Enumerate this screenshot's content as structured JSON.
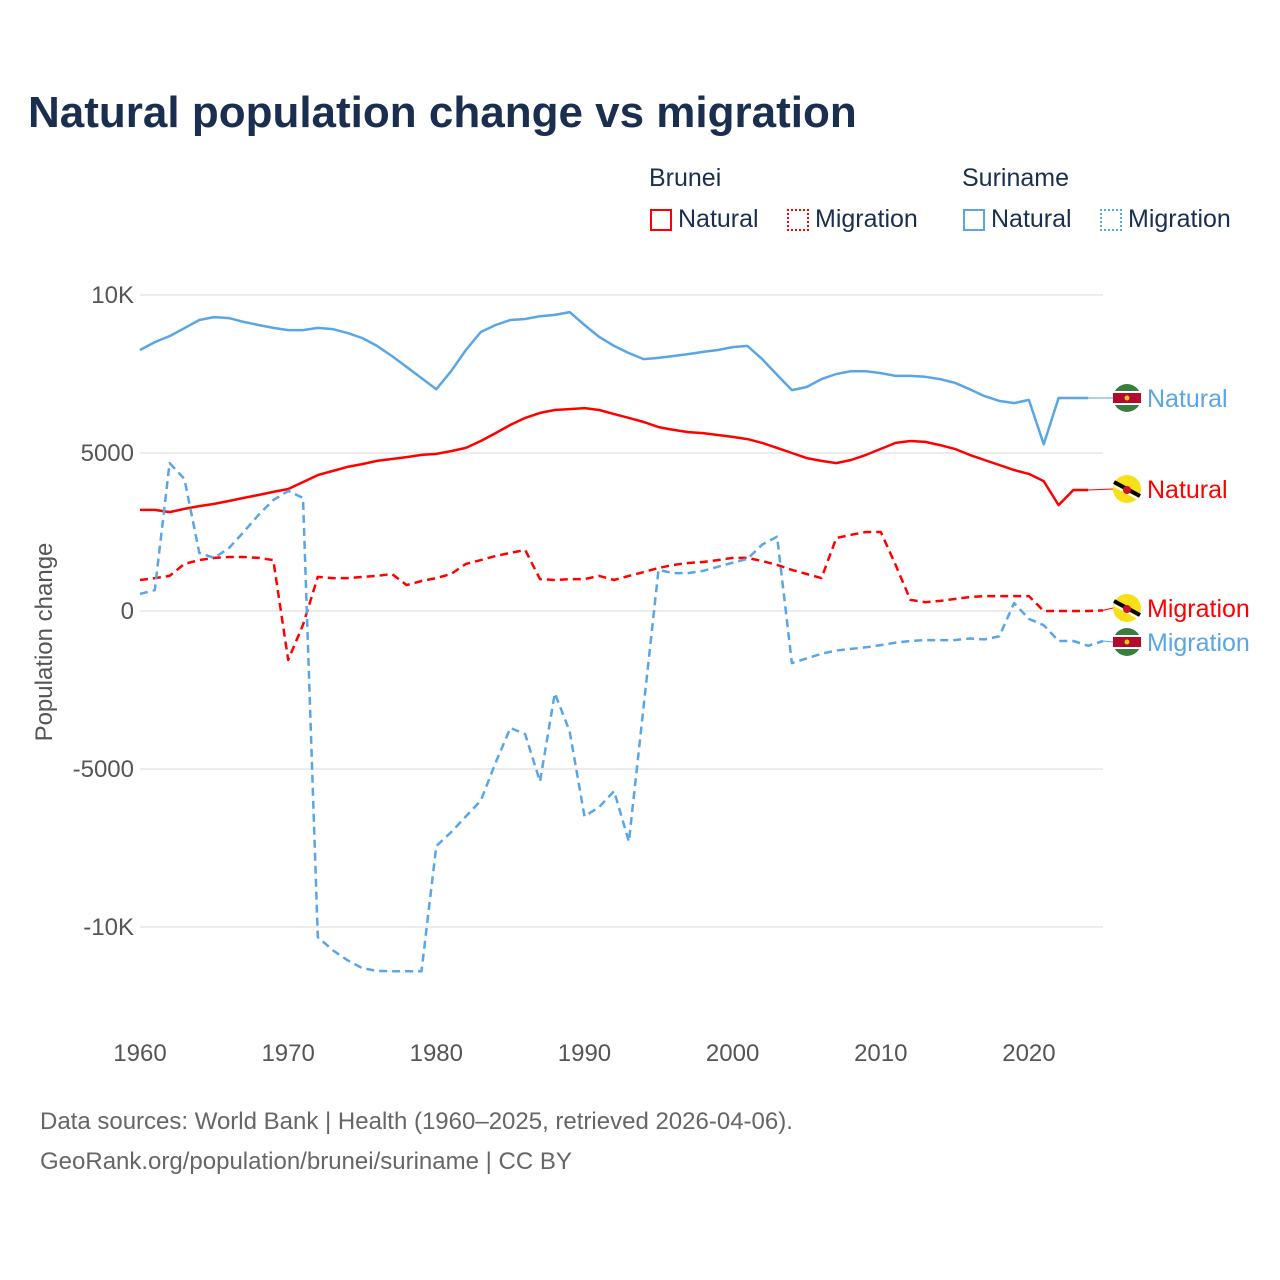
{
  "title": "Natural population change vs migration",
  "legend": {
    "groups": [
      {
        "name": "Brunei",
        "items": [
          "Natural",
          "Migration"
        ],
        "color": "#ff0000"
      },
      {
        "name": "Suriname",
        "items": [
          "Natural",
          "Migration"
        ],
        "color": "#5aa5e6"
      }
    ]
  },
  "footer": {
    "line1": "Data sources: World Bank | Health (1960–2025, retrieved 2026-04-06).",
    "line2": "GeoRank.org/population/brunei/suriname | CC BY"
  },
  "chart_data": {
    "type": "line",
    "title": "Natural population change vs migration",
    "xlabel": "",
    "ylabel": "Population change",
    "xlim": [
      1960,
      2025
    ],
    "ylim": [
      -12000,
      10000
    ],
    "x_ticks": [
      1960,
      1970,
      1980,
      1990,
      2000,
      2010,
      2020
    ],
    "x_tick_labels": [
      "1960",
      "1970",
      "1980",
      "1990",
      "2000",
      "2010",
      "2020"
    ],
    "y_ticks": [
      10000,
      5000,
      0,
      -5000,
      -10000
    ],
    "y_tick_labels": [
      "10K",
      "5000",
      "0",
      "-5000",
      "-10K"
    ],
    "grid": true,
    "legend_position": "top-right",
    "series": [
      {
        "name": "Suriname Natural",
        "label": "Natural",
        "country": "Suriname",
        "color": "#5aa5e6",
        "dash": false,
        "start": 1960,
        "values": [
          8260,
          8510,
          8700,
          8950,
          9210,
          9300,
          9270,
          9150,
          9050,
          8960,
          8890,
          8890,
          8960,
          8920,
          8800,
          8640,
          8390,
          8070,
          7720,
          7370,
          7020,
          7590,
          8260,
          8830,
          9050,
          9210,
          9240,
          9330,
          9370,
          9460,
          9050,
          8670,
          8390,
          8160,
          7970,
          8010,
          8070,
          8130,
          8200,
          8260,
          8350,
          8390,
          7970,
          7470,
          6990,
          7090,
          7340,
          7500,
          7590,
          7590,
          7530,
          7440,
          7440,
          7410,
          7340,
          7220,
          7020,
          6800,
          6650,
          6580,
          6680,
          5280,
          6740,
          6740,
          6740
        ]
      },
      {
        "name": "Brunei Natural",
        "label": "Natural",
        "country": "Brunei",
        "color": "#ff0000",
        "dash": false,
        "start": 1960,
        "values": [
          3200,
          3200,
          3130,
          3230,
          3320,
          3390,
          3480,
          3580,
          3670,
          3770,
          3860,
          4080,
          4300,
          4430,
          4560,
          4650,
          4750,
          4810,
          4870,
          4940,
          4970,
          5060,
          5160,
          5380,
          5630,
          5890,
          6110,
          6270,
          6360,
          6390,
          6420,
          6360,
          6230,
          6110,
          5980,
          5820,
          5730,
          5660,
          5630,
          5570,
          5510,
          5440,
          5320,
          5160,
          5000,
          4840,
          4750,
          4680,
          4780,
          4940,
          5130,
          5320,
          5380,
          5350,
          5250,
          5130,
          4940,
          4780,
          4620,
          4460,
          4340,
          4110,
          3350,
          3830,
          3830
        ]
      },
      {
        "name": "Brunei Migration",
        "label": "Migration",
        "country": "Brunei",
        "color": "#ff0000",
        "dash": true,
        "start": 1960,
        "values": [
          980,
          1040,
          1110,
          1490,
          1610,
          1680,
          1710,
          1710,
          1680,
          1610,
          -1550,
          -440,
          1080,
          1040,
          1040,
          1080,
          1110,
          1170,
          820,
          950,
          1040,
          1170,
          1490,
          1610,
          1740,
          1840,
          1930,
          1010,
          980,
          1010,
          1010,
          1110,
          980,
          1110,
          1230,
          1360,
          1460,
          1520,
          1550,
          1610,
          1680,
          1680,
          1580,
          1460,
          1300,
          1170,
          1040,
          2310,
          2410,
          2500,
          2500,
          1460,
          350,
          280,
          320,
          380,
          440,
          470,
          470,
          470,
          470,
          0,
          0,
          0,
          0,
          20
        ]
      },
      {
        "name": "Suriname Migration",
        "label": "Migration",
        "country": "Suriname",
        "color": "#5aa5e6",
        "dash": true,
        "start": 1960,
        "values": [
          540,
          660,
          4680,
          4180,
          1840,
          1680,
          1990,
          2500,
          3040,
          3510,
          3800,
          3580,
          -10320,
          -10730,
          -11050,
          -11300,
          -11390,
          -11400,
          -11400,
          -11400,
          -7440,
          -7000,
          -6500,
          -6000,
          -4800,
          -3700,
          -3900,
          -5400,
          -2600,
          -3800,
          -6500,
          -6200,
          -5700,
          -7300,
          -3000,
          1300,
          1200,
          1200,
          1270,
          1400,
          1530,
          1650,
          2100,
          2350,
          -1650,
          -1500,
          -1350,
          -1250,
          -1200,
          -1150,
          -1080,
          -1000,
          -950,
          -920,
          -920,
          -920,
          -870,
          -900,
          -800,
          250,
          -250,
          -450,
          -950,
          -950,
          -1100,
          -950
        ]
      }
    ]
  }
}
